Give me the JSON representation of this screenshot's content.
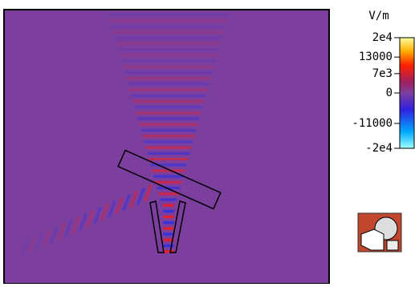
{
  "colorbar": {
    "unit": "V/m",
    "range": [
      -20000,
      20000
    ],
    "ticks": [
      {
        "value": 20000,
        "label": "2e4"
      },
      13000,
      {
        "value": 7000,
        "label": "7e3"
      },
      0,
      -11000,
      {
        "value": -20000,
        "label": "-2e4"
      }
    ]
  }
}
